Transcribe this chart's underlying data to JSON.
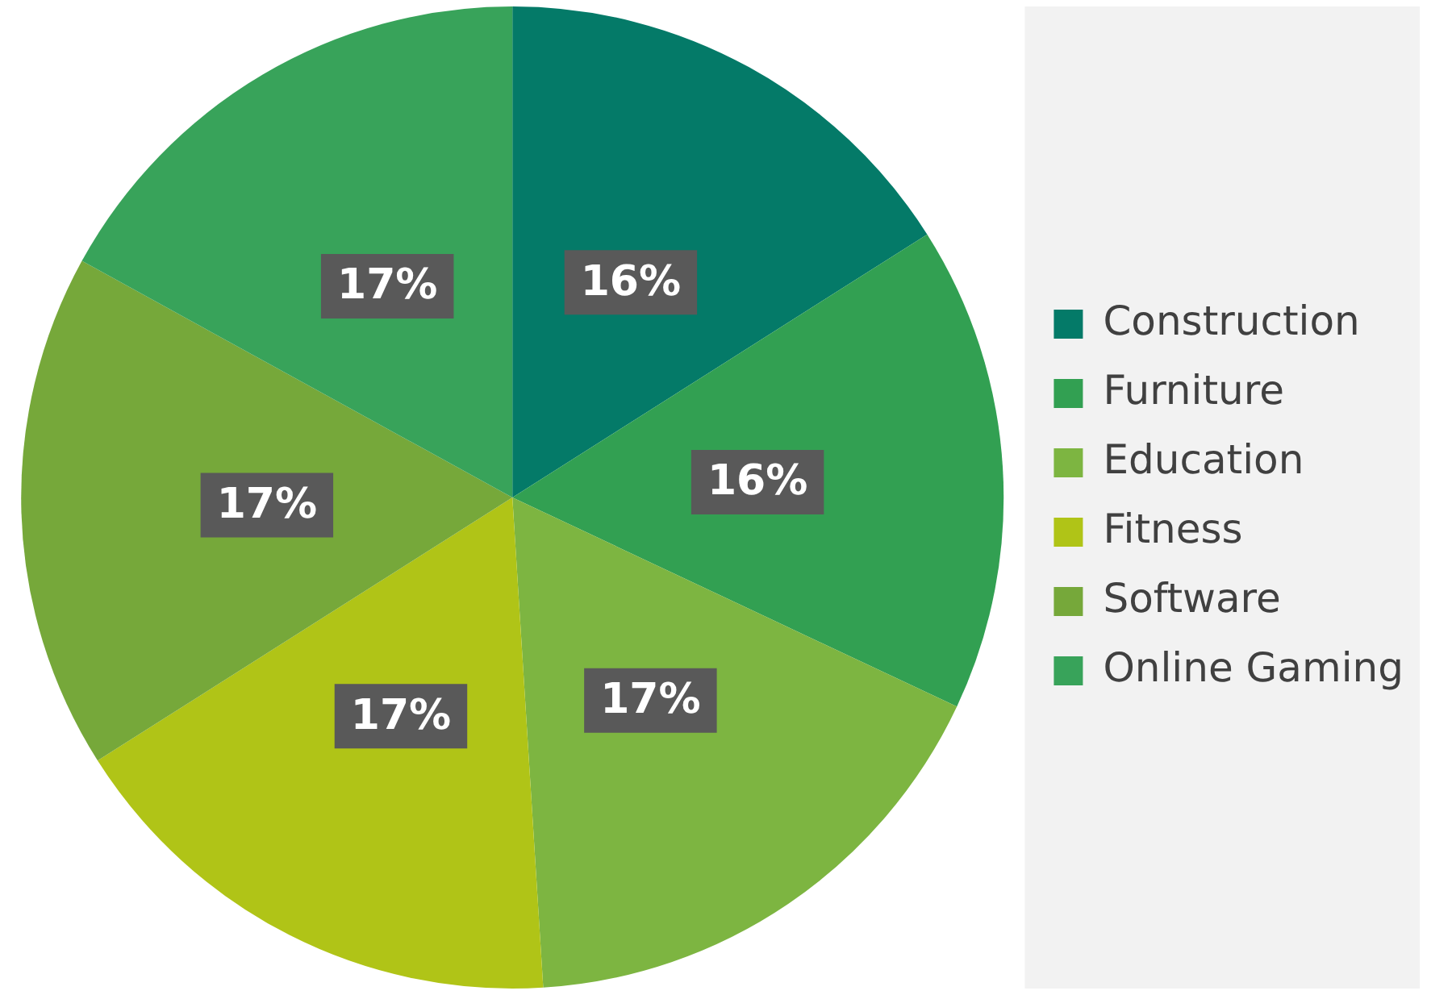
{
  "chart_data": {
    "type": "pie",
    "categories": [
      "Construction",
      "Furniture",
      "Education",
      "Fitness",
      "Software",
      "Online Gaming"
    ],
    "values": [
      16,
      16,
      17,
      17,
      17,
      17
    ],
    "value_labels": [
      "16%",
      "16%",
      "17%",
      "17%",
      "17%",
      "17%"
    ],
    "colors": [
      "#047a68",
      "#32a052",
      "#7db541",
      "#b0c417",
      "#76a83a",
      "#38a35a"
    ],
    "legend": "right"
  }
}
